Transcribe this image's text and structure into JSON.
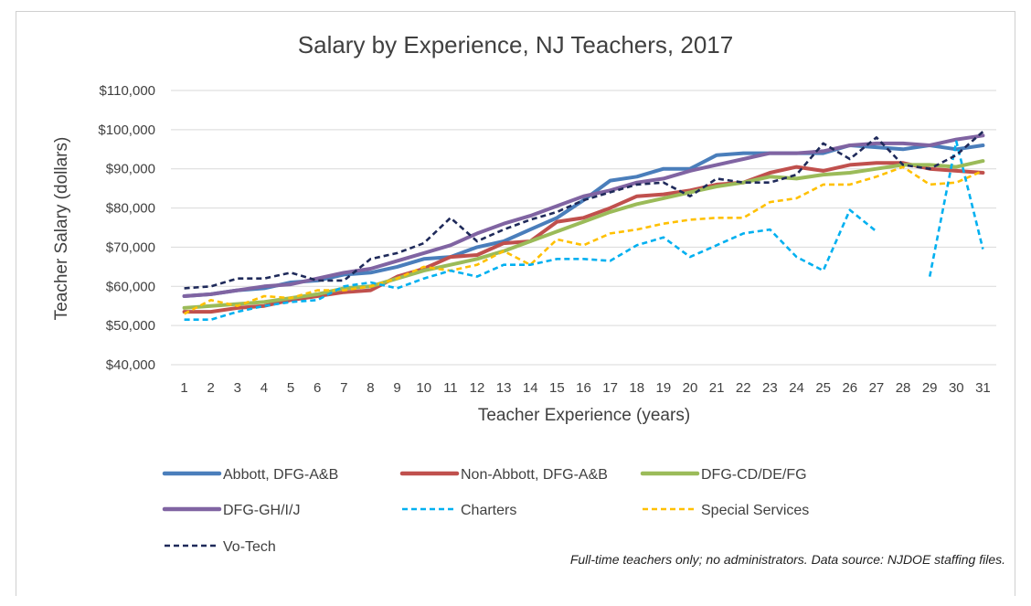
{
  "chart_data": {
    "type": "line",
    "title": "Salary by Experience, NJ Teachers, 2017",
    "xlabel": "Teacher Experience (years)",
    "ylabel": "Teacher Salary (dollars)",
    "x": [
      1,
      2,
      3,
      4,
      5,
      6,
      7,
      8,
      9,
      10,
      11,
      12,
      13,
      14,
      15,
      16,
      17,
      18,
      19,
      20,
      21,
      22,
      23,
      24,
      25,
      26,
      27,
      28,
      29,
      30,
      31
    ],
    "ylim": [
      40000,
      110000
    ],
    "yticks": [
      40000,
      50000,
      60000,
      70000,
      80000,
      90000,
      100000,
      110000
    ],
    "ytick_labels": [
      "$40,000",
      "$50,000",
      "$60,000",
      "$70,000",
      "$80,000",
      "$90,000",
      "$100,000",
      "$110,000"
    ],
    "grid": "horizontal",
    "legend_position": "bottom",
    "series": [
      {
        "name": "Abbott, DFG-A&B",
        "color": "#4a7ebb",
        "style": "solid",
        "values": [
          57500,
          58000,
          59000,
          59500,
          61000,
          61500,
          63000,
          63500,
          65000,
          67000,
          67500,
          70000,
          71500,
          74500,
          77500,
          82000,
          87000,
          88000,
          90000,
          90000,
          93500,
          94000,
          94000,
          94000,
          94000,
          96000,
          95500,
          95000,
          96000,
          95000,
          96000
        ]
      },
      {
        "name": "Non-Abbott, DFG-A&B",
        "color": "#c0504d",
        "style": "solid",
        "values": [
          53500,
          53500,
          54500,
          55000,
          56500,
          57500,
          58500,
          59000,
          62500,
          64500,
          67500,
          68000,
          71000,
          71500,
          76500,
          77500,
          80000,
          83000,
          83500,
          84500,
          86000,
          86500,
          89000,
          90500,
          89500,
          91000,
          91500,
          91500,
          90000,
          89500,
          89000
        ]
      },
      {
        "name": "DFG-CD/DE/FG",
        "color": "#9bbb59",
        "style": "solid",
        "values": [
          54500,
          55000,
          55500,
          56000,
          57000,
          58000,
          59500,
          60000,
          62000,
          64000,
          65500,
          67000,
          69000,
          71500,
          74000,
          76500,
          79000,
          81000,
          82500,
          84000,
          85500,
          86500,
          88000,
          87500,
          88500,
          89000,
          90000,
          91000,
          91000,
          90500,
          92000
        ]
      },
      {
        "name": "DFG-GH/I/J",
        "color": "#8064a2",
        "style": "solid",
        "values": [
          57500,
          58000,
          59000,
          60000,
          60500,
          62000,
          63500,
          64500,
          66500,
          68500,
          70500,
          73500,
          76000,
          78000,
          80500,
          83000,
          84500,
          86500,
          87500,
          89500,
          91000,
          92500,
          94000,
          94000,
          94500,
          96000,
          96500,
          96500,
          96000,
          97500,
          98500
        ]
      },
      {
        "name": "Charters",
        "color": "#00b0f0",
        "style": "dashed",
        "values": [
          51500,
          51500,
          53500,
          55000,
          56000,
          56500,
          60000,
          61000,
          59500,
          62000,
          64000,
          62500,
          65500,
          65500,
          67000,
          67000,
          66500,
          70500,
          72500,
          67500,
          70500,
          73500,
          74500,
          67500,
          64000,
          79500,
          74000,
          null,
          62500,
          97000,
          69500
        ]
      },
      {
        "name": "Special Services",
        "color": "#ffc000",
        "style": "dashed",
        "values": [
          53000,
          56500,
          55000,
          57500,
          57000,
          59000,
          59000,
          60000,
          62000,
          65000,
          64000,
          65500,
          69000,
          65500,
          72000,
          70500,
          73500,
          74500,
          76000,
          77000,
          77500,
          77500,
          81500,
          82500,
          86000,
          86000,
          88000,
          90500,
          86000,
          86500,
          89500
        ]
      },
      {
        "name": "Vo-Tech",
        "color": "#1f2a5a",
        "style": "dashed",
        "values": [
          59500,
          60000,
          62000,
          62000,
          63500,
          61500,
          61500,
          67000,
          68500,
          71000,
          77500,
          71500,
          74500,
          77000,
          79000,
          82000,
          84000,
          86000,
          86500,
          83000,
          87500,
          86500,
          86500,
          88500,
          96500,
          92500,
          98000,
          91000,
          90000,
          93500,
          99500
        ]
      }
    ]
  },
  "note": "Full-time teachers only; no administrators. Data source: NJDOE staffing files."
}
